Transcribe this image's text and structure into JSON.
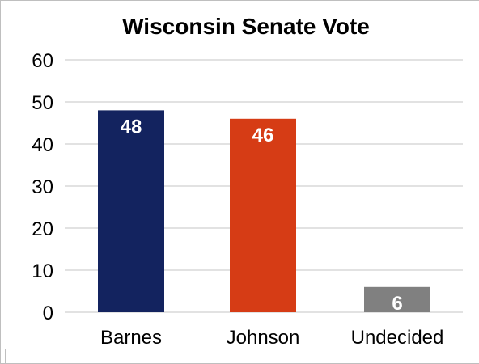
{
  "chart_data": {
    "type": "bar",
    "title": "Wisconsin Senate Vote",
    "xlabel": "",
    "ylabel": "",
    "categories": [
      "Barnes",
      "Johnson",
      "Undecided"
    ],
    "values": [
      48,
      46,
      6
    ],
    "data_labels": [
      "48",
      "46",
      "6"
    ],
    "colors": [
      "#13235f",
      "#d63c15",
      "#808080"
    ],
    "ylim": [
      0,
      60
    ],
    "yticks": [
      "0",
      "10",
      "20",
      "30",
      "40",
      "50",
      "60"
    ],
    "grid": true,
    "legend": "none"
  }
}
